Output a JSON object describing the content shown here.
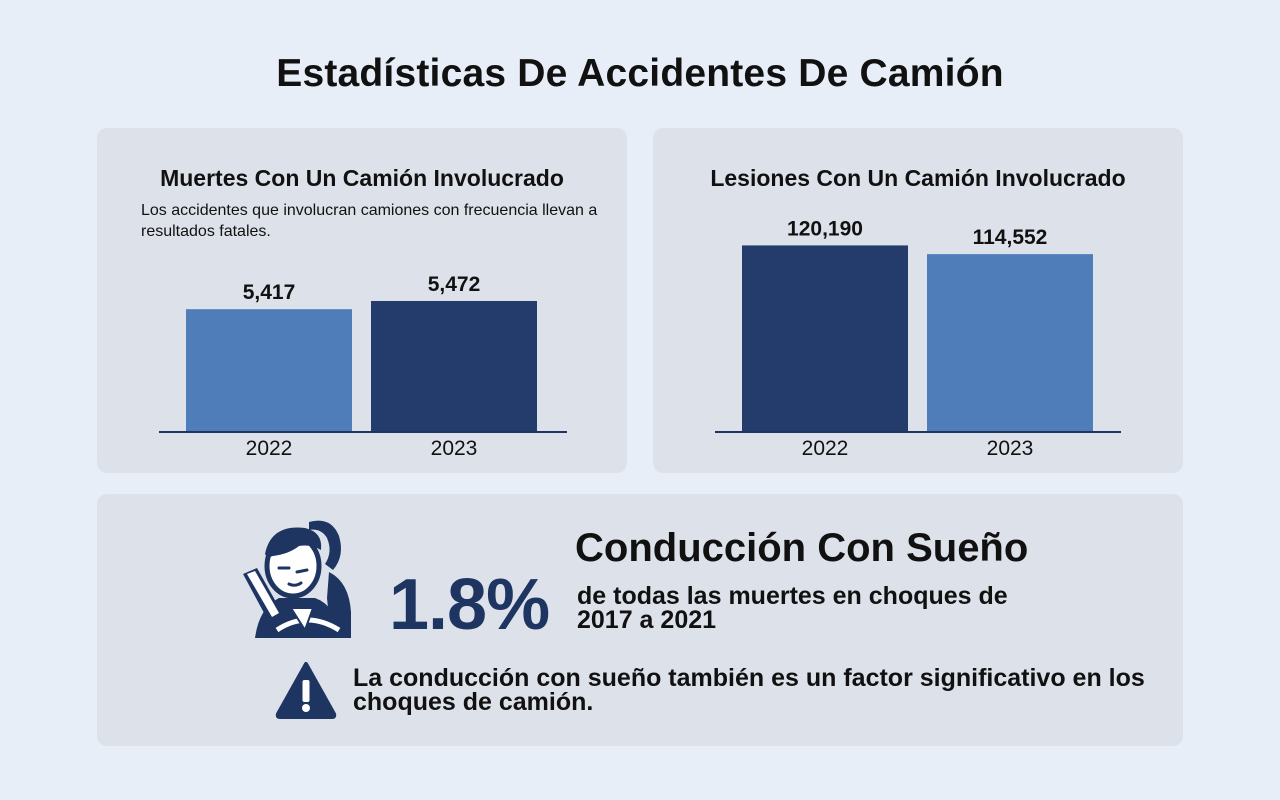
{
  "page": {
    "title": "Estadísticas De Accidentes De Camión"
  },
  "colors": {
    "background": "#e8eef7",
    "panel": "#dde2ea",
    "dark_bar": "#233c6b",
    "light_bar": "#4e7dba",
    "accent_text": "#1f3561"
  },
  "chart_data": [
    {
      "type": "bar",
      "title": "Muertes Con Un Camión Involucrado",
      "subtitle": "Los accidentes que involucran camiones con frecuencia llevan a resultados fatales.",
      "categories": [
        "2022",
        "2023"
      ],
      "values": [
        5417,
        5472
      ],
      "value_labels": [
        "5,417",
        "5,472"
      ],
      "bar_colors": [
        "#4e7dba",
        "#233c6b"
      ],
      "ylim": [
        4600,
        5700
      ],
      "grid": false,
      "legend": "none"
    },
    {
      "type": "bar",
      "title": "Lesiones Con Un Camión Involucrado",
      "categories": [
        "2022",
        "2023"
      ],
      "values": [
        120190,
        114552
      ],
      "value_labels": [
        "120,190",
        "114,552"
      ],
      "bar_colors": [
        "#233c6b",
        "#4e7dba"
      ],
      "ylim": [
        0,
        125000
      ],
      "grid": false,
      "legend": "none"
    }
  ],
  "drowsy": {
    "icon": "drowsy-driver-icon",
    "percent": "1.8%",
    "heading": "Conducción Con Sueño",
    "description": "de todas las muertes en choques de 2017 a 2021",
    "warning_icon": "warning-triangle-icon",
    "warning_text": "La conducción con sueño también es un factor significativo en los choques de camión."
  }
}
